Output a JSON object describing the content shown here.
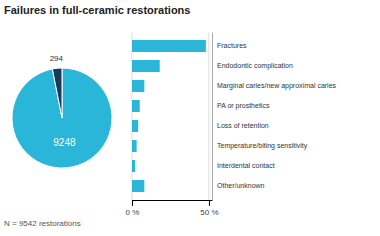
{
  "chart_data": [
    {
      "type": "pie",
      "title": "Failures in full-ceramic restorations",
      "values": [
        9248,
        294
      ],
      "colors": [
        "#29b6d8",
        "#1a3a5c"
      ],
      "data_labels": true,
      "annotations": [
        "N = 9542 restorations"
      ]
    },
    {
      "type": "bar",
      "orientation": "horizontal",
      "categories": [
        "Fractures",
        "Endodontic complication",
        "Marginal caries/new approximal caries",
        "PA or prosthetics",
        "Loss of retention",
        "Temperature/biting sensitivity",
        "Interdental contact",
        "Other/unknown"
      ],
      "values": [
        48,
        18,
        8,
        5,
        4,
        3,
        2,
        8
      ],
      "color": "#29b6d8",
      "xlim": [
        0,
        52
      ],
      "xticks": [
        {
          "value": 0,
          "label": "0 %"
        },
        {
          "value": 50,
          "label": "50 %"
        }
      ],
      "grid": true
    }
  ]
}
